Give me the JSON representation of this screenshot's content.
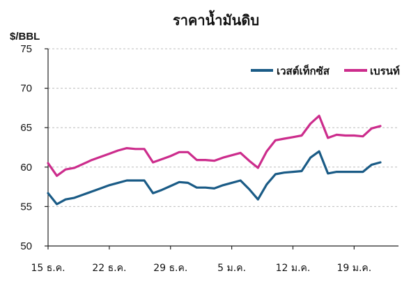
{
  "chart_data": {
    "type": "line",
    "title": "ราคาน้ำมันดิบ",
    "ylabel": "$/BBL",
    "xlabel": "",
    "ylim": [
      50,
      75
    ],
    "yticks": [
      50,
      55,
      60,
      65,
      70,
      75
    ],
    "grid": true,
    "legend_position": "top-right",
    "x_tick_labels": [
      "15 ธ.ค.",
      "22 ธ.ค.",
      "29 ธ.ค.",
      "5 ม.ค.",
      "12 ม.ค.",
      "19 ม.ค."
    ],
    "series": [
      {
        "name": "เวสต์เท็กซัส",
        "color": "#1a5b86",
        "values": [
          56.7,
          55.3,
          55.9,
          56.1,
          56.5,
          56.9,
          57.3,
          57.7,
          58.0,
          58.3,
          58.3,
          58.3,
          56.7,
          57.1,
          57.6,
          58.1,
          58.0,
          57.4,
          57.4,
          57.3,
          57.7,
          58.0,
          58.3,
          57.2,
          55.9,
          57.8,
          59.1,
          59.3,
          59.4,
          59.5,
          61.2,
          62.0,
          59.2,
          59.4,
          59.4,
          59.4,
          59.4,
          60.3,
          60.6
        ]
      },
      {
        "name": "เบรนท์",
        "color": "#cc2c8c",
        "values": [
          60.5,
          58.9,
          59.7,
          59.9,
          60.4,
          60.9,
          61.3,
          61.7,
          62.1,
          62.4,
          62.3,
          62.3,
          60.6,
          61.0,
          61.4,
          61.9,
          61.9,
          60.9,
          60.9,
          60.8,
          61.2,
          61.5,
          61.8,
          60.8,
          59.9,
          62.0,
          63.4,
          63.6,
          63.8,
          64.0,
          65.5,
          66.5,
          63.7,
          64.1,
          64.0,
          64.0,
          63.9,
          64.9,
          65.2
        ]
      }
    ]
  }
}
